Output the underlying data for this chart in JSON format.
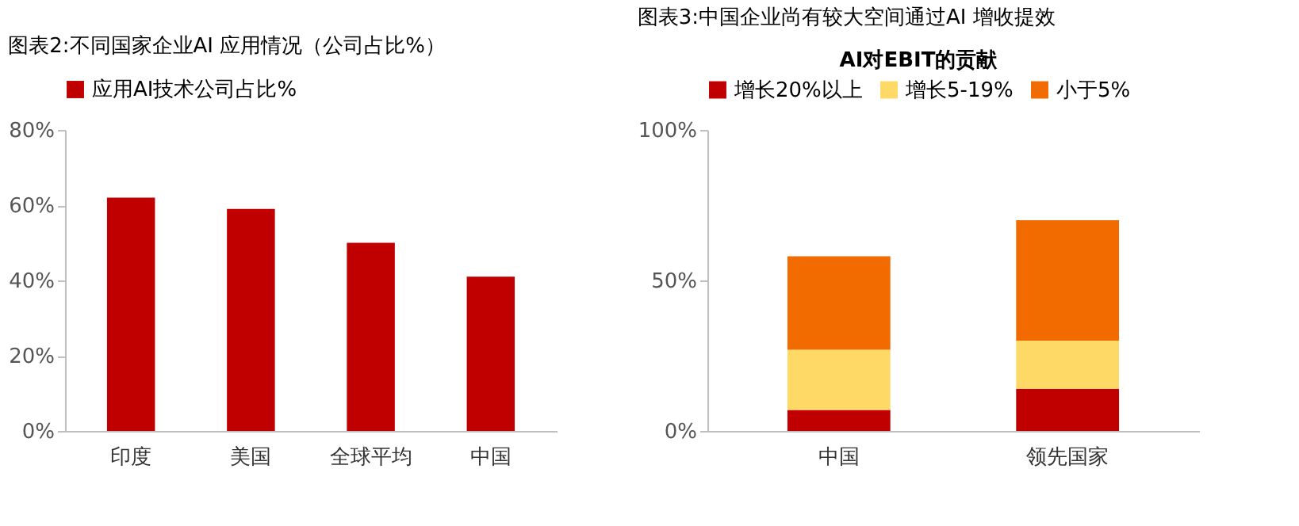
{
  "chart_data": [
    {
      "type": "bar",
      "title": "图表2:不同国家企业AI 应用情况（公司占比%）",
      "categories": [
        "印度",
        "美国",
        "全球平均",
        "中国"
      ],
      "series": [
        {
          "name": "应用AI技术公司占比%",
          "color": "#c00000",
          "values": [
            62,
            59,
            50,
            41
          ]
        }
      ],
      "ylim": [
        0,
        80
      ],
      "yticks": [
        {
          "value": 0,
          "label": "0%"
        },
        {
          "value": 20,
          "label": "20%"
        },
        {
          "value": 40,
          "label": "40%"
        },
        {
          "value": 60,
          "label": "60%"
        },
        {
          "value": 80,
          "label": "80%"
        }
      ],
      "grid": false,
      "legend": "top"
    },
    {
      "type": "bar",
      "title": "图表3:中国企业尚有较大空间通过AI 增收提效",
      "legend_title": "AI对EBIT的贡献",
      "categories": [
        "中国",
        "领先国家"
      ],
      "stacked": true,
      "series": [
        {
          "name": "增长20%以上",
          "color": "#c00000",
          "values": [
            7,
            14
          ]
        },
        {
          "name": "增长5-19%",
          "color": "#ffd966",
          "values": [
            20,
            16
          ]
        },
        {
          "name": "小于5%",
          "color": "#f26b00",
          "values": [
            31,
            40
          ]
        }
      ],
      "ylim": [
        0,
        100
      ],
      "yticks": [
        {
          "value": 0,
          "label": "0%"
        },
        {
          "value": 50,
          "label": "50%"
        },
        {
          "value": 100,
          "label": "100%"
        }
      ],
      "grid": false,
      "legend": "top"
    }
  ]
}
